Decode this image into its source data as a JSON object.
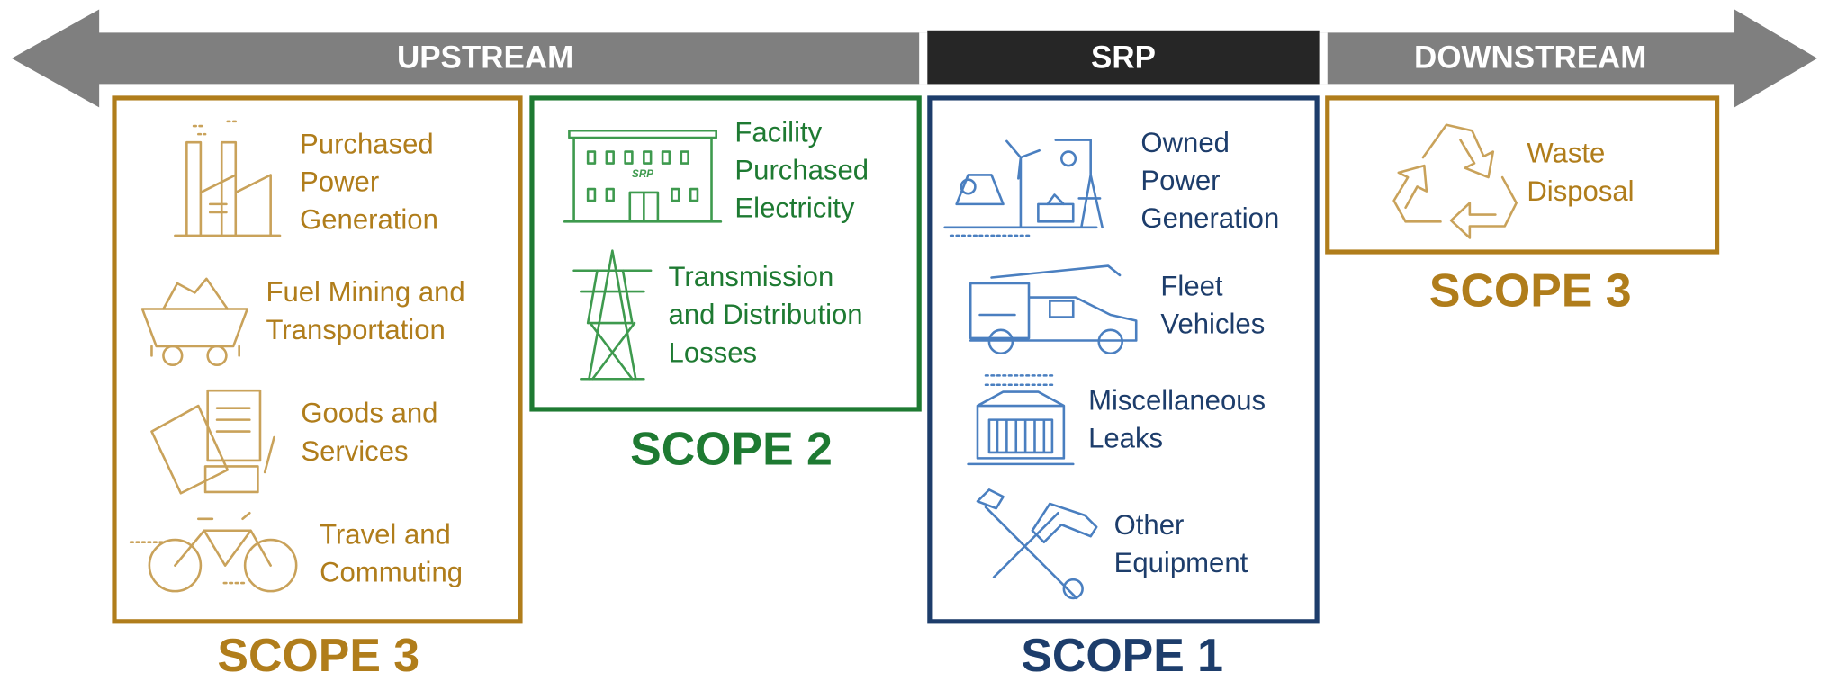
{
  "banner": {
    "upstream": "UPSTREAM",
    "srp": "SRP",
    "downstream": "DOWNSTREAM"
  },
  "scopes": [
    {
      "label": "SCOPE 3",
      "items": [
        {
          "lines": [
            "Purchased",
            "Power",
            "Generation"
          ]
        },
        {
          "lines": [
            "Fuel Mining and",
            "Transportation"
          ]
        },
        {
          "lines": [
            "Goods and",
            "Services"
          ]
        },
        {
          "lines": [
            "Travel and",
            "Commuting"
          ]
        }
      ]
    },
    {
      "label": "SCOPE 2",
      "items": [
        {
          "lines": [
            "Facility",
            "Purchased",
            "Electricity"
          ],
          "logo": "SRP"
        },
        {
          "lines": [
            "Transmission",
            "and Distribution",
            "Losses"
          ]
        }
      ]
    },
    {
      "label": "SCOPE 1",
      "items": [
        {
          "lines": [
            "Owned",
            "Power",
            "Generation"
          ]
        },
        {
          "lines": [
            "Fleet",
            "Vehicles"
          ]
        },
        {
          "lines": [
            "Miscellaneous",
            "Leaks"
          ]
        },
        {
          "lines": [
            "Other",
            "Equipment"
          ]
        }
      ]
    },
    {
      "label": "SCOPE 3",
      "items": [
        {
          "lines": [
            "Waste",
            "Disposal"
          ]
        }
      ]
    }
  ]
}
